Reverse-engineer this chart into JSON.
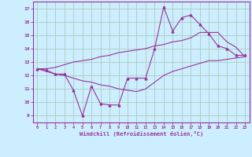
{
  "xlabel": "Windchill (Refroidissement éolien,°C)",
  "background_color": "#cceeff",
  "grid_color": "#aaccbb",
  "line_color": "#993399",
  "xlim": [
    -0.5,
    23.5
  ],
  "ylim": [
    8.5,
    17.5
  ],
  "x_ticks": [
    0,
    1,
    2,
    3,
    4,
    5,
    6,
    7,
    8,
    9,
    10,
    11,
    12,
    13,
    14,
    15,
    16,
    17,
    18,
    19,
    20,
    21,
    22,
    23
  ],
  "y_ticks": [
    9,
    10,
    11,
    12,
    13,
    14,
    15,
    16,
    17
  ],
  "hours": [
    0,
    1,
    2,
    3,
    4,
    5,
    6,
    7,
    8,
    9,
    10,
    11,
    12,
    13,
    14,
    15,
    16,
    17,
    18,
    19,
    20,
    21,
    22,
    23
  ],
  "temp_main": [
    12.5,
    12.4,
    12.1,
    12.1,
    10.9,
    9.0,
    11.2,
    9.9,
    9.8,
    9.8,
    11.8,
    11.8,
    11.8,
    14.0,
    17.1,
    15.3,
    16.3,
    16.5,
    15.8,
    15.1,
    14.2,
    14.0,
    13.5,
    13.5
  ],
  "temp_upper": [
    12.5,
    12.5,
    12.6,
    12.8,
    13.0,
    13.1,
    13.2,
    13.4,
    13.5,
    13.7,
    13.8,
    13.9,
    14.0,
    14.2,
    14.3,
    14.5,
    14.6,
    14.8,
    15.2,
    15.2,
    15.2,
    14.5,
    14.1,
    13.4
  ],
  "temp_lower": [
    12.5,
    12.3,
    12.1,
    12.0,
    11.8,
    11.6,
    11.5,
    11.3,
    11.2,
    11.0,
    10.9,
    10.8,
    11.0,
    11.5,
    12.0,
    12.3,
    12.5,
    12.7,
    12.9,
    13.1,
    13.1,
    13.2,
    13.3,
    13.4
  ]
}
